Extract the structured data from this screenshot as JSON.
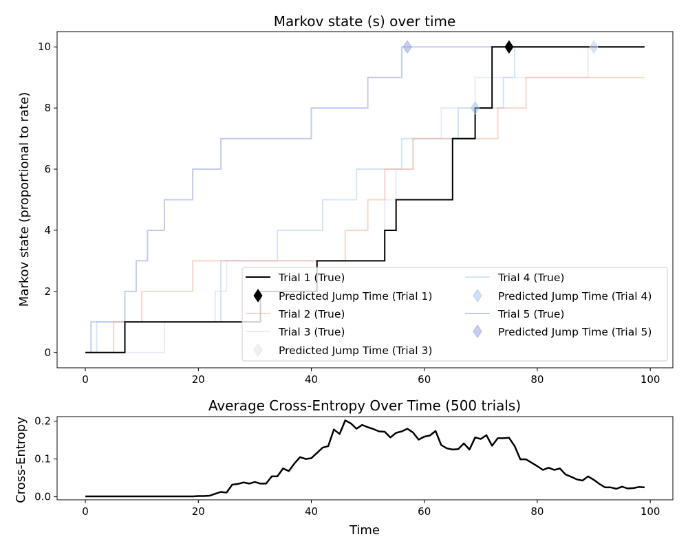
{
  "chart_data": [
    {
      "type": "line",
      "title": "Markov state (s) over time",
      "xlabel": "",
      "ylabel": "Markov state (proportional to rate)",
      "xlim": [
        -5,
        104
      ],
      "ylim": [
        -0.5,
        10.5
      ],
      "xticks": [
        0,
        20,
        40,
        60,
        80,
        100
      ],
      "yticks": [
        0,
        2,
        4,
        6,
        8,
        10
      ],
      "grid": false,
      "legend_placement": "lower-right",
      "series": [
        {
          "name": "Trial 1 (True)",
          "color": "#000000",
          "opacity": 1.0,
          "width": 2,
          "jumps": [
            [
              0,
              0
            ],
            [
              7,
              1
            ],
            [
              31,
              2
            ],
            [
              41,
              3
            ],
            [
              53,
              4
            ],
            [
              55,
              5
            ],
            [
              65,
              7
            ],
            [
              69,
              8
            ],
            [
              72,
              10
            ]
          ],
          "end": 99
        },
        {
          "name": "Trial 2 (True)",
          "color": "#f4a582",
          "opacity": 0.45,
          "width": 2,
          "jumps": [
            [
              0,
              0
            ],
            [
              5,
              1
            ],
            [
              10,
              2
            ],
            [
              19,
              3
            ],
            [
              46,
              4
            ],
            [
              50,
              5
            ],
            [
              53,
              6
            ],
            [
              58,
              7
            ],
            [
              73,
              8
            ],
            [
              78,
              9
            ]
          ],
          "end": 99
        },
        {
          "name": "Trial 3 (True)",
          "color": "#c9d4f0",
          "opacity": 0.45,
          "width": 2,
          "jumps": [
            [
              0,
              0
            ],
            [
              14,
              1
            ],
            [
              23,
              2
            ],
            [
              25,
              3
            ],
            [
              53,
              5
            ],
            [
              55,
              6
            ],
            [
              58,
              7
            ],
            [
              63,
              8
            ],
            [
              69,
              9
            ],
            [
              89,
              10
            ]
          ],
          "end": 99
        },
        {
          "name": "Trial 4 (True)",
          "color": "#9dc3f0",
          "opacity": 0.45,
          "width": 2,
          "jumps": [
            [
              0,
              0
            ],
            [
              2,
              1
            ],
            [
              24,
              3
            ],
            [
              34,
              4
            ],
            [
              42,
              5
            ],
            [
              48,
              6
            ],
            [
              56,
              7
            ],
            [
              66,
              8
            ],
            [
              74,
              9
            ],
            [
              76,
              10
            ]
          ],
          "end": 99
        },
        {
          "name": "Trial 5 (True)",
          "color": "#8fa0e0",
          "opacity": 0.55,
          "width": 2,
          "jumps": [
            [
              0,
              0
            ],
            [
              1,
              1
            ],
            [
              7,
              2
            ],
            [
              9,
              3
            ],
            [
              11,
              4
            ],
            [
              14,
              5
            ],
            [
              19,
              6
            ],
            [
              24,
              7
            ],
            [
              40,
              8
            ],
            [
              50,
              9
            ],
            [
              56,
              10
            ]
          ],
          "end": 99
        }
      ],
      "markers": [
        {
          "name": "Predicted Jump Time (Trial 1)",
          "x": 75,
          "y": 10,
          "color": "#000000",
          "opacity": 1.0
        },
        {
          "name": "Predicted Jump Time (Trial 3)",
          "x": 90,
          "y": 10,
          "color": "#c9d4f0",
          "opacity": 0.6
        },
        {
          "name": "Predicted Jump Time (Trial 4)",
          "x": 69,
          "y": 8,
          "color": "#9dc3f0",
          "opacity": 0.5
        },
        {
          "name": "Predicted Jump Time (Trial 5)",
          "x": 57,
          "y": 10,
          "color": "#8fa0e0",
          "opacity": 0.5
        }
      ],
      "legend_order": [
        [
          "Trial 1 (True)",
          "line",
          "#000000",
          1.0
        ],
        [
          "Predicted Jump Time (Trial 1)",
          "marker",
          "#000000",
          1.0
        ],
        [
          "Trial 2 (True)",
          "line",
          "#f4a582",
          0.45
        ],
        [
          "Trial 3 (True)",
          "line",
          "#c9d4f0",
          0.45
        ],
        [
          "Predicted Jump Time (Trial 3)",
          "marker",
          "#e6e6e6",
          0.6
        ],
        [
          "Trial 4 (True)",
          "line",
          "#9dc3f0",
          0.45
        ],
        [
          "Predicted Jump Time (Trial 4)",
          "marker",
          "#9dc3f0",
          0.5
        ],
        [
          "Trial 5 (True)",
          "line",
          "#8fa0e0",
          0.55
        ],
        [
          "Predicted Jump Time (Trial 5)",
          "marker",
          "#8fa0e0",
          0.5
        ]
      ]
    },
    {
      "type": "line",
      "title": "Average Cross-Entropy Over Time (500 trials)",
      "xlabel": "Time",
      "ylabel": "Cross-Entropy",
      "xlim": [
        -5,
        104
      ],
      "ylim": [
        -0.008,
        0.212
      ],
      "xticks": [
        0,
        20,
        40,
        60,
        80,
        100
      ],
      "yticks": [
        0.0,
        0.1,
        0.2
      ],
      "ytick_labels": [
        "0.0",
        "0.1",
        "0.2"
      ],
      "grid": false,
      "series": [
        {
          "name": "",
          "color": "#000000",
          "x": [
            0,
            1,
            2,
            3,
            4,
            5,
            6,
            7,
            8,
            9,
            10,
            11,
            12,
            13,
            14,
            15,
            16,
            17,
            18,
            19,
            20,
            21,
            22,
            23,
            24,
            25,
            26,
            27,
            28,
            29,
            30,
            31,
            32,
            33,
            34,
            35,
            36,
            37,
            38,
            39,
            40,
            41,
            42,
            43,
            44,
            45,
            46,
            47,
            48,
            49,
            50,
            51,
            52,
            53,
            54,
            55,
            56,
            57,
            58,
            59,
            60,
            61,
            62,
            63,
            64,
            65,
            66,
            67,
            68,
            69,
            70,
            71,
            72,
            73,
            74,
            75,
            76,
            77,
            78,
            79,
            80,
            81,
            82,
            83,
            84,
            85,
            86,
            87,
            88,
            89,
            90,
            91,
            92,
            93,
            94,
            95,
            96,
            97,
            98,
            99
          ],
          "values": [
            0.001,
            0.001,
            0.001,
            0.001,
            0.001,
            0.001,
            0.001,
            0.001,
            0.001,
            0.001,
            0.001,
            0.001,
            0.001,
            0.001,
            0.001,
            0.001,
            0.001,
            0.001,
            0.001,
            0.001,
            0.002,
            0.002,
            0.003,
            0.008,
            0.013,
            0.011,
            0.032,
            0.034,
            0.038,
            0.035,
            0.039,
            0.035,
            0.035,
            0.054,
            0.054,
            0.075,
            0.068,
            0.088,
            0.105,
            0.1,
            0.102,
            0.116,
            0.13,
            0.134,
            0.178,
            0.166,
            0.202,
            0.194,
            0.18,
            0.19,
            0.184,
            0.179,
            0.173,
            0.172,
            0.157,
            0.169,
            0.173,
            0.18,
            0.17,
            0.151,
            0.159,
            0.162,
            0.174,
            0.137,
            0.128,
            0.125,
            0.126,
            0.141,
            0.125,
            0.157,
            0.153,
            0.163,
            0.135,
            0.155,
            0.155,
            0.156,
            0.134,
            0.099,
            0.099,
            0.09,
            0.081,
            0.071,
            0.077,
            0.071,
            0.075,
            0.059,
            0.053,
            0.046,
            0.043,
            0.054,
            0.045,
            0.034,
            0.025,
            0.025,
            0.021,
            0.027,
            0.022,
            0.023,
            0.026,
            0.025
          ]
        }
      ]
    }
  ]
}
